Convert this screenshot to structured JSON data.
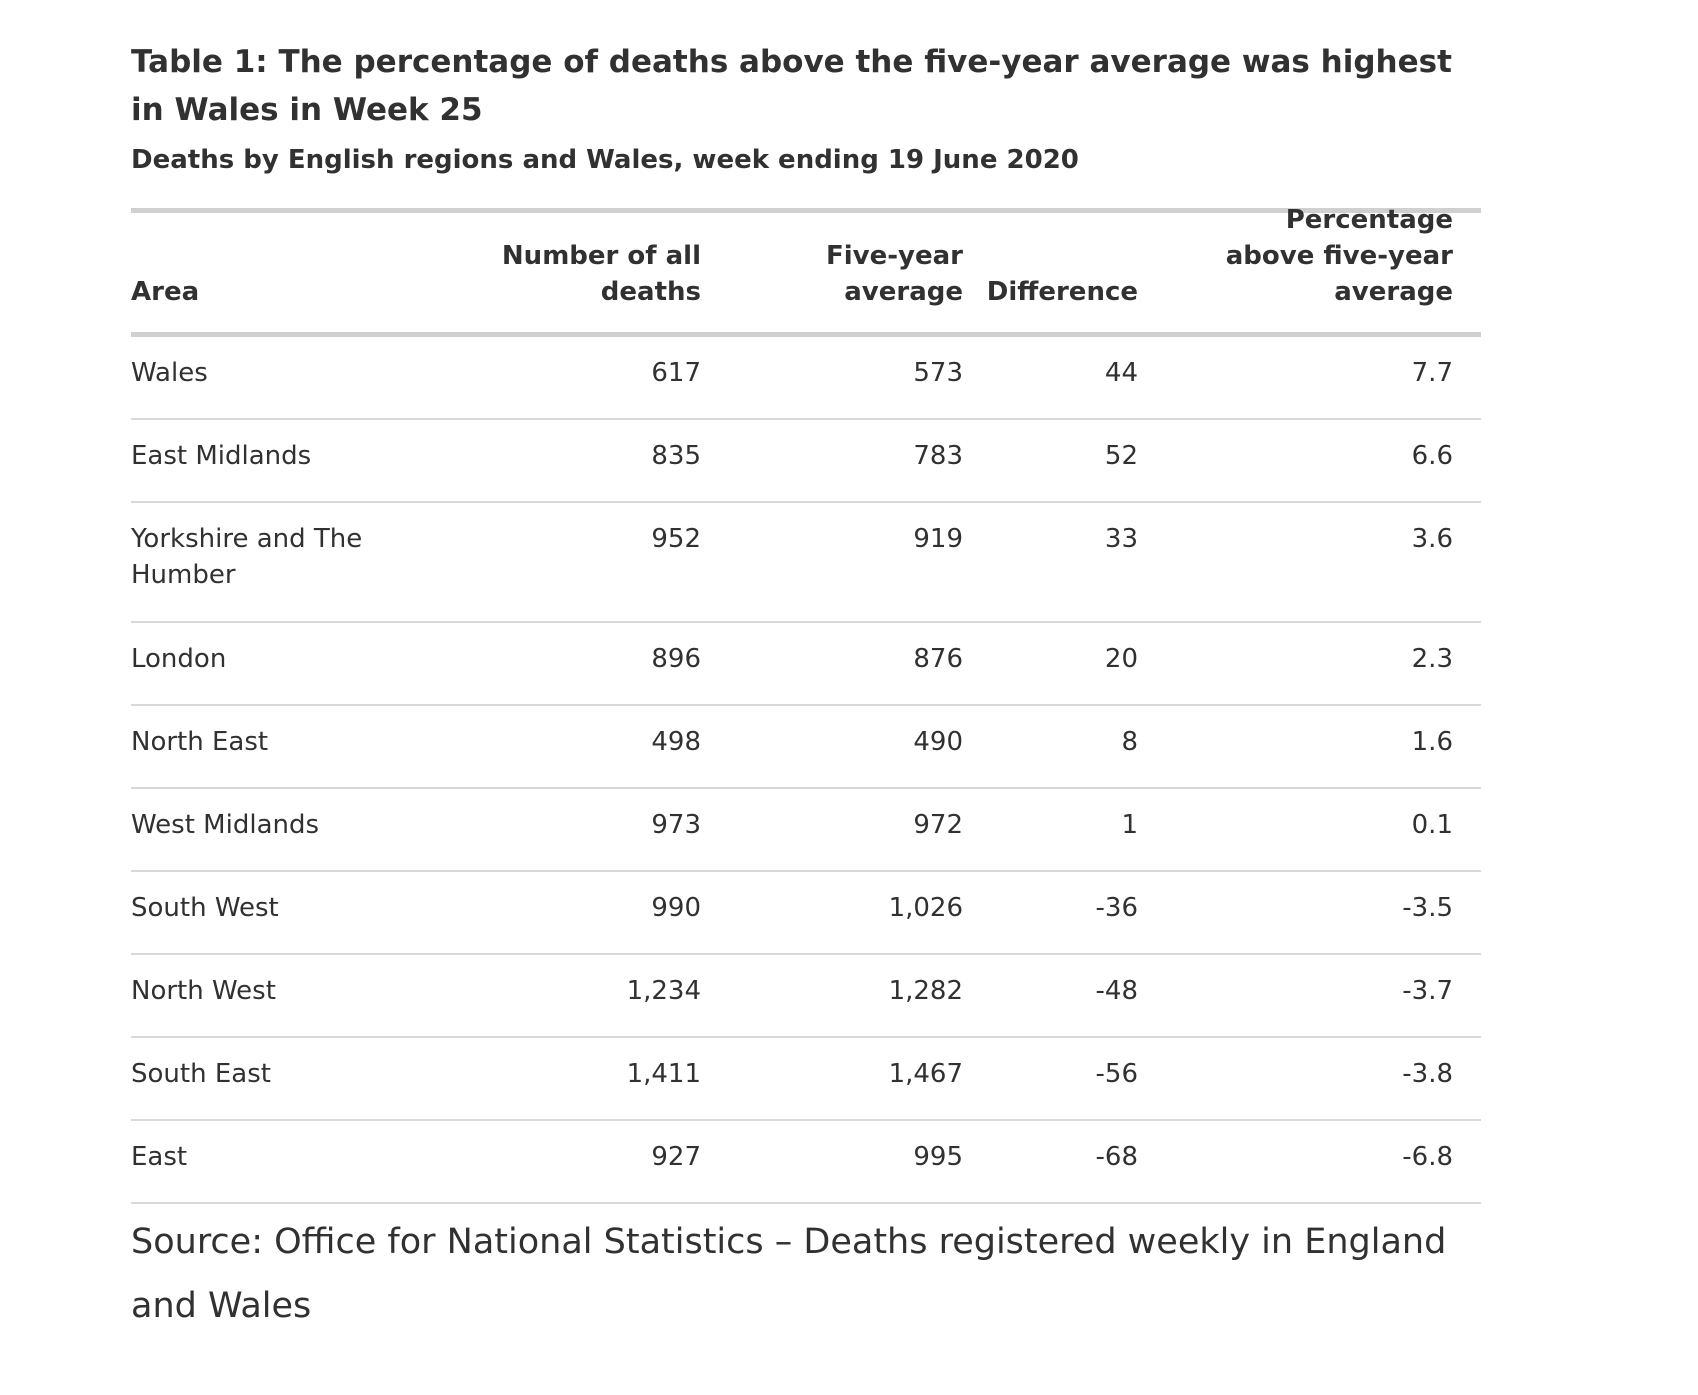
{
  "title": "Table 1: The percentage of deaths above the five-year average was highest in Wales in Week 25",
  "subtitle": "Deaths by English regions and Wales, week ending 19 June 2020",
  "columns": {
    "area": "Area",
    "deaths": "Number of all deaths",
    "average": "Five-year average",
    "difference": "Difference",
    "percentage": "Percentage above five-year average"
  },
  "rows": [
    {
      "area": "Wales",
      "deaths": "617",
      "average": "573",
      "difference": "44",
      "percentage": "7.7"
    },
    {
      "area": "East Midlands",
      "deaths": "835",
      "average": "783",
      "difference": "52",
      "percentage": "6.6"
    },
    {
      "area": "Yorkshire and The Humber",
      "deaths": "952",
      "average": "919",
      "difference": "33",
      "percentage": "3.6"
    },
    {
      "area": "London",
      "deaths": "896",
      "average": "876",
      "difference": "20",
      "percentage": "2.3"
    },
    {
      "area": "North East",
      "deaths": "498",
      "average": "490",
      "difference": "8",
      "percentage": "1.6"
    },
    {
      "area": "West Midlands",
      "deaths": "973",
      "average": "972",
      "difference": "1",
      "percentage": "0.1"
    },
    {
      "area": "South West",
      "deaths": "990",
      "average": "1,026",
      "difference": "-36",
      "percentage": "-3.5"
    },
    {
      "area": "North West",
      "deaths": "1,234",
      "average": "1,282",
      "difference": "-48",
      "percentage": "-3.7"
    },
    {
      "area": "South East",
      "deaths": "1,411",
      "average": "1,467",
      "difference": "-56",
      "percentage": "-3.8"
    },
    {
      "area": "East",
      "deaths": "927",
      "average": "995",
      "difference": "-68",
      "percentage": "-6.8"
    }
  ],
  "source": "Source: Office for National Statistics – Deaths registered weekly in England and Wales"
}
